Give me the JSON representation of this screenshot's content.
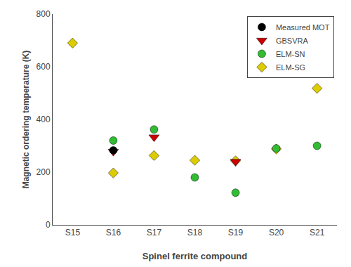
{
  "chart_data": {
    "type": "scatter",
    "xlabel": "Spinel ferrite compound",
    "ylabel": "Magnetic ordering temperature (K)",
    "categories": [
      "S15",
      "S16",
      "S17",
      "S18",
      "S19",
      "S20",
      "S21"
    ],
    "series": [
      {
        "name": "Measured MOT",
        "color": "#000000",
        "marker": "circle",
        "values": [
          null,
          283,
          null,
          null,
          null,
          null,
          null
        ]
      },
      {
        "name": "GBSVRA",
        "color": "#cc0000",
        "marker": "triangle-down",
        "values": [
          null,
          278,
          333,
          null,
          240,
          null,
          null
        ]
      },
      {
        "name": "ELM-SN",
        "color": "#33bb33",
        "marker": "circle",
        "values": [
          null,
          320,
          362,
          180,
          122,
          290,
          300
        ]
      },
      {
        "name": "ELM-SG",
        "color": "#ddcc00",
        "marker": "diamond",
        "values": [
          690,
          197,
          263,
          245,
          243,
          288,
          518
        ]
      }
    ],
    "ylim": [
      0,
      800
    ],
    "yticks": [
      0,
      200,
      400,
      600,
      800
    ],
    "grid": false,
    "legend": "upper right"
  }
}
